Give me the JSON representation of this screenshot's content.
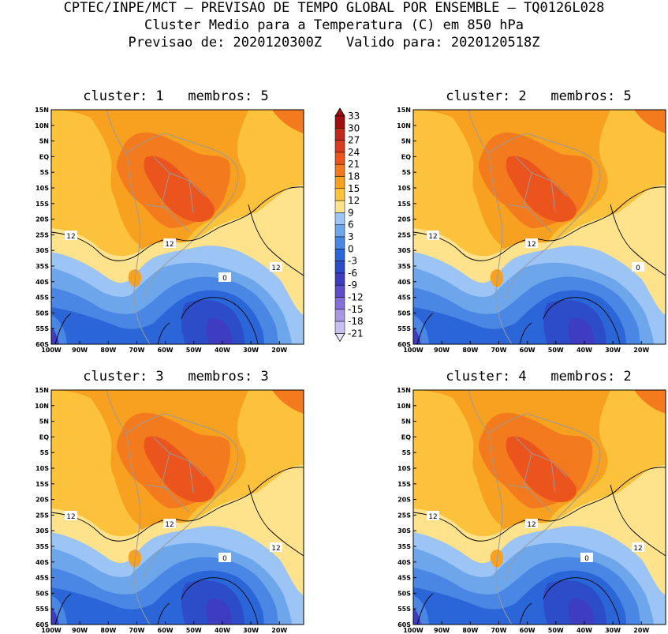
{
  "header": {
    "line1": "CPTEC/INPE/MCT – PREVISAO DE TEMPO GLOBAL POR ENSEMBLE – TQ0126L028",
    "line2": "Cluster Medio para a Temperatura (C) em 850 hPa",
    "line3": "Previsao de: 2020120300Z   Valido para: 2020120518Z"
  },
  "axes": {
    "lat_labels": [
      "15N",
      "10N",
      "5N",
      "EQ",
      "5S",
      "10S",
      "15S",
      "20S",
      "25S",
      "30S",
      "35S",
      "40S",
      "45S",
      "50S",
      "55S",
      "60S"
    ],
    "lon_labels": [
      "100W",
      "90W",
      "80W",
      "70W",
      "60W",
      "50W",
      "40W",
      "30W",
      "20W"
    ]
  },
  "legend": {
    "values": [
      "33",
      "30",
      "27",
      "24",
      "21",
      "18",
      "15",
      "12",
      "9",
      "6",
      "3",
      "0",
      "-3",
      "-6",
      "-9",
      "-12",
      "-15",
      "-18",
      "-21"
    ],
    "colors": [
      "#a01010",
      "#c0281c",
      "#dc3c1e",
      "#ec541e",
      "#f47a1e",
      "#f8a020",
      "#fcc23c",
      "#fee38c",
      "#9cc4f4",
      "#6ea6ec",
      "#4a86e4",
      "#2a66d8",
      "#2c4cc8",
      "#3e3cc0",
      "#5e4cc8",
      "#8470d8",
      "#a898e4",
      "#c8c0f0",
      "#e8e4fa"
    ]
  },
  "panels": [
    {
      "title": "cluster: 1   membros: 5",
      "contours": [
        "12",
        "12",
        "12",
        "0"
      ]
    },
    {
      "title": "cluster: 2   membros: 5",
      "contours": [
        "12",
        "12",
        "0"
      ]
    },
    {
      "title": "cluster: 3   membros: 3",
      "contours": [
        "12",
        "12",
        "12",
        "0"
      ]
    },
    {
      "title": "cluster: 4   membros: 2",
      "contours": [
        "12",
        "12",
        "12",
        "0"
      ]
    }
  ]
}
